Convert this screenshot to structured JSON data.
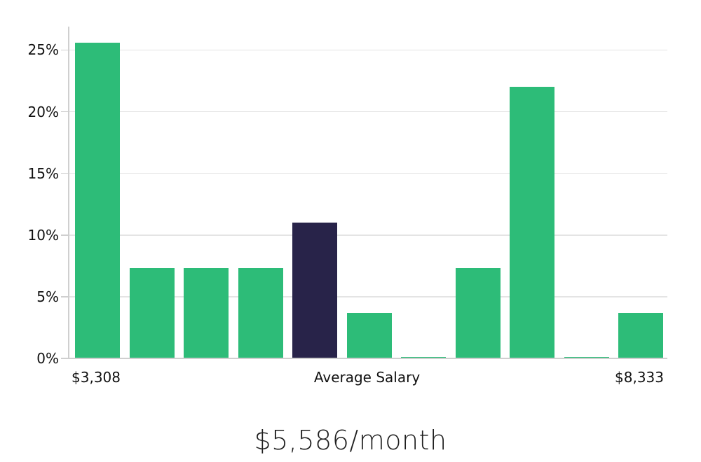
{
  "chart_data": {
    "type": "bar",
    "title": "$5,586/month",
    "values": [
      25.6,
      7.3,
      7.3,
      7.3,
      11,
      3.7,
      0.1,
      7.3,
      22,
      0.1,
      3.7
    ],
    "value_unit": "%",
    "highlight_index": 4,
    "x_axis_labels": [
      {
        "text": "$3,308",
        "anchor": "first_bar"
      },
      {
        "text": "Average Salary",
        "anchor": "center"
      },
      {
        "text": "$8,333",
        "anchor": "last_bar"
      }
    ],
    "y_axis": {
      "ticks": [
        0,
        5,
        10,
        15,
        20,
        25
      ],
      "tick_labels": [
        "0%",
        "5%",
        "10%",
        "15%",
        "20%",
        "25%"
      ],
      "range": [
        0,
        26.9
      ]
    },
    "grid": true,
    "legend": "none",
    "colors": {
      "bar": "#2dbc78",
      "highlight_bar": "#282349",
      "gridline": "#e4e4e4",
      "axis_line": "#cfcfcf",
      "tick_text": "#111111",
      "title_text": "#1f1f1f"
    }
  }
}
